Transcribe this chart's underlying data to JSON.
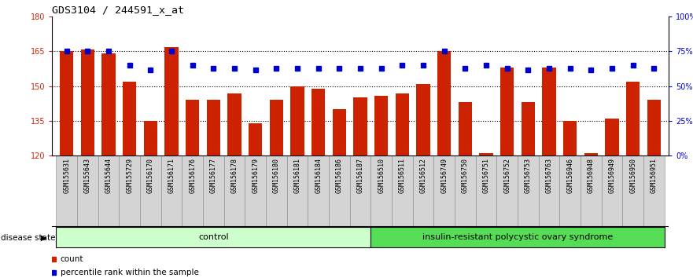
{
  "title": "GDS3104 / 244591_x_at",
  "samples": [
    "GSM155631",
    "GSM155643",
    "GSM155644",
    "GSM155729",
    "GSM156170",
    "GSM156171",
    "GSM156176",
    "GSM156177",
    "GSM156178",
    "GSM156179",
    "GSM156180",
    "GSM156181",
    "GSM156184",
    "GSM156186",
    "GSM156187",
    "GSM156510",
    "GSM156511",
    "GSM156512",
    "GSM156749",
    "GSM156750",
    "GSM156751",
    "GSM156752",
    "GSM156753",
    "GSM156763",
    "GSM156946",
    "GSM156948",
    "GSM156949",
    "GSM156950",
    "GSM156951"
  ],
  "counts": [
    165,
    166,
    164,
    152,
    135,
    167,
    144,
    144,
    147,
    134,
    144,
    150,
    149,
    140,
    145,
    146,
    147,
    151,
    165,
    143,
    121,
    158,
    143,
    158,
    135,
    121,
    136,
    152,
    144
  ],
  "percentile_ranks": [
    75,
    75,
    75,
    65,
    62,
    75,
    65,
    63,
    63,
    62,
    63,
    63,
    63,
    63,
    63,
    63,
    65,
    65,
    75,
    63,
    65,
    63,
    62,
    63,
    63,
    62,
    63,
    65,
    63
  ],
  "control_count": 15,
  "disease_count": 14,
  "ylim_left": [
    120,
    180
  ],
  "ylim_right": [
    0,
    100
  ],
  "yticks_left": [
    120,
    135,
    150,
    165,
    180
  ],
  "yticks_right": [
    0,
    25,
    50,
    75,
    100
  ],
  "ytick_labels_right": [
    "0%",
    "25%",
    "50%",
    "75%",
    "100%"
  ],
  "bar_color": "#cc2200",
  "dot_color": "#0000cc",
  "control_label": "control",
  "disease_label": "insulin-resistant polycystic ovary syndrome",
  "legend_count_label": "count",
  "legend_pct_label": "percentile rank within the sample",
  "bg_control": "#ccffcc",
  "bg_disease": "#55dd55",
  "label_disease_state": "disease state",
  "title_fontsize": 9.5,
  "tick_fontsize": 7,
  "sample_fontsize": 6,
  "label_fontsize": 8
}
